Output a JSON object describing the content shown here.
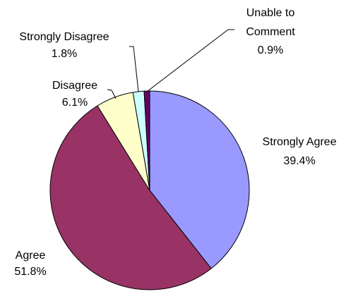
{
  "chart_data": {
    "type": "pie",
    "title": "",
    "slices": [
      {
        "label": "Strongly Agree",
        "value": 39.4,
        "value_label": "39.4%",
        "color": "#9999FF"
      },
      {
        "label": "Agree",
        "value": 51.8,
        "value_label": "51.8%",
        "color": "#993366"
      },
      {
        "label": "Disagree",
        "value": 6.1,
        "value_label": "6.1%",
        "color": "#FFFFCC"
      },
      {
        "label": "Strongly Disagree",
        "value": 1.8,
        "value_label": "1.8%",
        "color": "#CCFFFF"
      },
      {
        "label": "Unable to Comment",
        "value": 0.9,
        "value_label": "0.9%",
        "color": "#660066"
      }
    ],
    "start": "12 o'clock",
    "direction": "clockwise",
    "legend": "none",
    "labels": "outside with leader lines"
  }
}
